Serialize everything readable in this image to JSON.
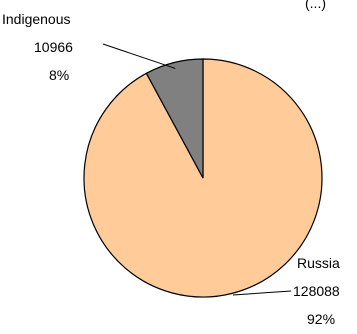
{
  "chart_data": {
    "type": "pie",
    "title": "",
    "slices": [
      {
        "label": "Indigenous",
        "value": 10966,
        "value_label": "10966",
        "percent_label": "8%",
        "color": "#808080"
      },
      {
        "label": "Russia",
        "value": 128088,
        "value_label": "128088",
        "percent_label": "92%",
        "color": "#FFCC99"
      }
    ],
    "legend": "none",
    "data_labels": "outside"
  },
  "corner_fragment": "(...)"
}
